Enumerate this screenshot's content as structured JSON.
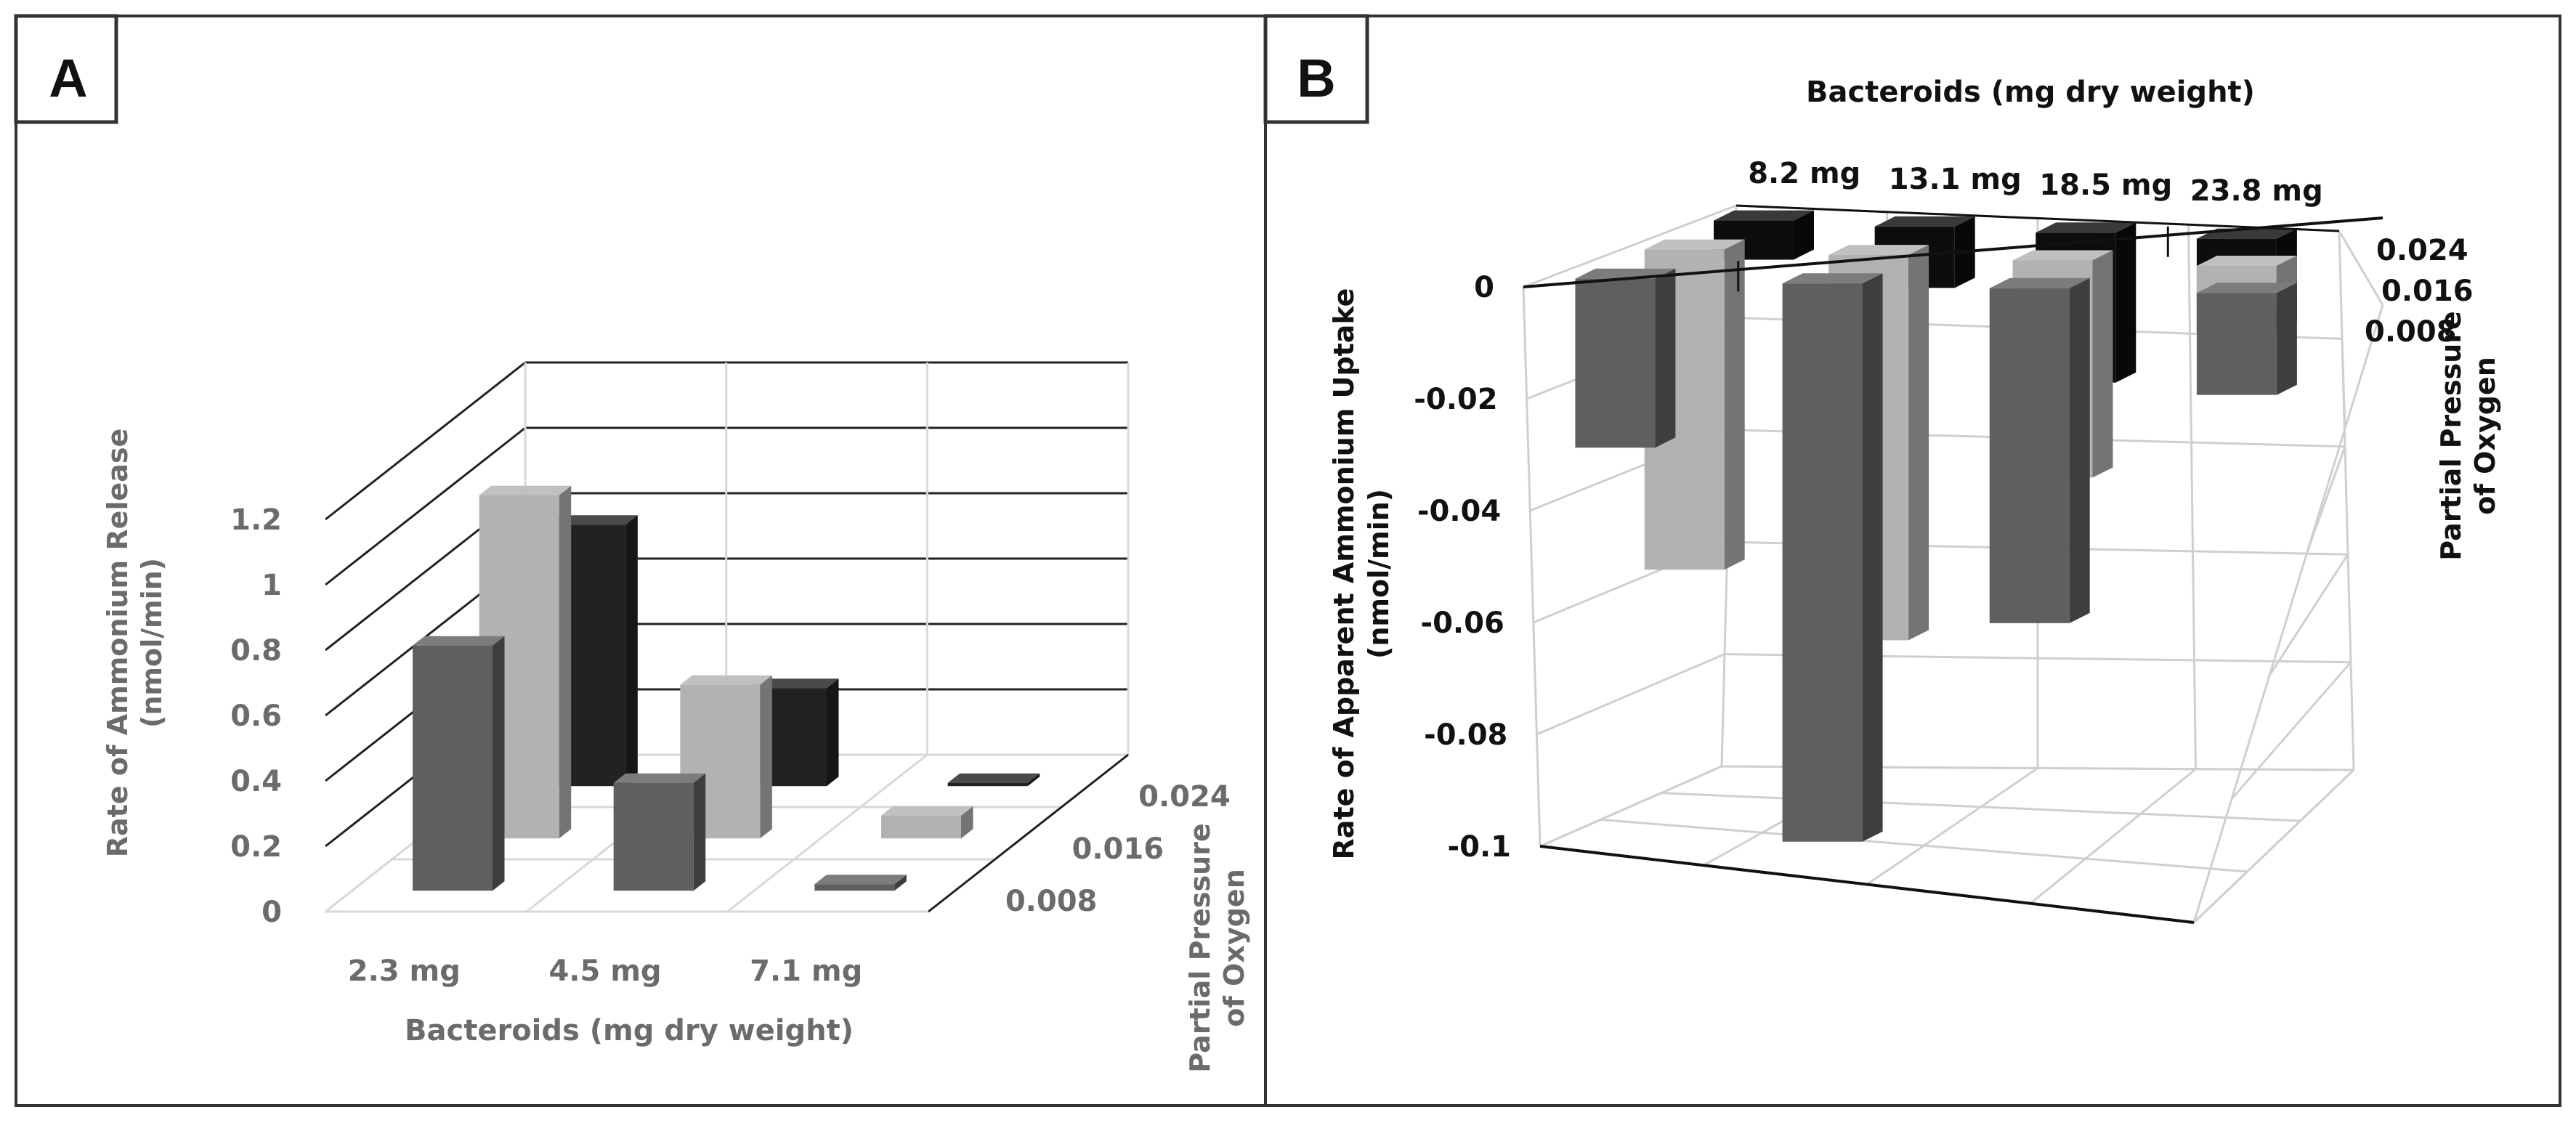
{
  "figure": {
    "panels": [
      {
        "id": "A",
        "label": "A"
      },
      {
        "id": "B",
        "label": "B"
      }
    ]
  },
  "chart_data": [
    {
      "panel": "A",
      "type": "bar",
      "projection": "3d-clustered",
      "title": "",
      "xlabel": "Bacteroids (mg dry weight)",
      "ylabel": "Rate of Ammonium Release (nmol/min)",
      "zlabel": "Partial Pressure of Oxygen",
      "categories": [
        "2.3 mg",
        "4.5 mg",
        "7.1 mg"
      ],
      "ylim": [
        0,
        1.2
      ],
      "yticks": [
        "0",
        "0.2",
        "0.4",
        "0.6",
        "0.8",
        "1",
        "1.2"
      ],
      "series": [
        {
          "name": "0.008",
          "color": "#5f5f5f",
          "values": [
            0.75,
            0.33,
            0.02
          ]
        },
        {
          "name": "0.016",
          "color": "#b2b2b2",
          "values": [
            1.05,
            0.47,
            0.07
          ]
        },
        {
          "name": "0.024",
          "color": "#222222",
          "values": [
            0.8,
            0.3,
            0.01
          ]
        }
      ],
      "grid": true
    },
    {
      "panel": "B",
      "type": "bar",
      "projection": "3d-clustered",
      "title": "",
      "xlabel": "Bacteroids (mg dry weight)",
      "ylabel": "Rate of Apparent Ammonium Uptake (nmol/min)",
      "zlabel": "Partial Pressure of Oxygen",
      "categories": [
        "8.2 mg",
        "13.1 mg",
        "18.5 mg",
        "23.8 mg"
      ],
      "ylim": [
        -0.1,
        0
      ],
      "yticks": [
        "0",
        "-0.02",
        "-0.04",
        "-0.06",
        "-0.08",
        "-0.1"
      ],
      "series": [
        {
          "name": "0.008",
          "color": "#5f5f5f",
          "values": [
            -0.03,
            -0.097,
            -0.057,
            -0.017
          ]
        },
        {
          "name": "0.016",
          "color": "#b2b2b2",
          "values": [
            -0.057,
            -0.068,
            -0.038,
            -0.007
          ]
        },
        {
          "name": "0.024",
          "color": "#0d0d0d",
          "values": [
            -0.007,
            -0.011,
            -0.027,
            -0.017
          ]
        }
      ],
      "grid": true
    }
  ]
}
